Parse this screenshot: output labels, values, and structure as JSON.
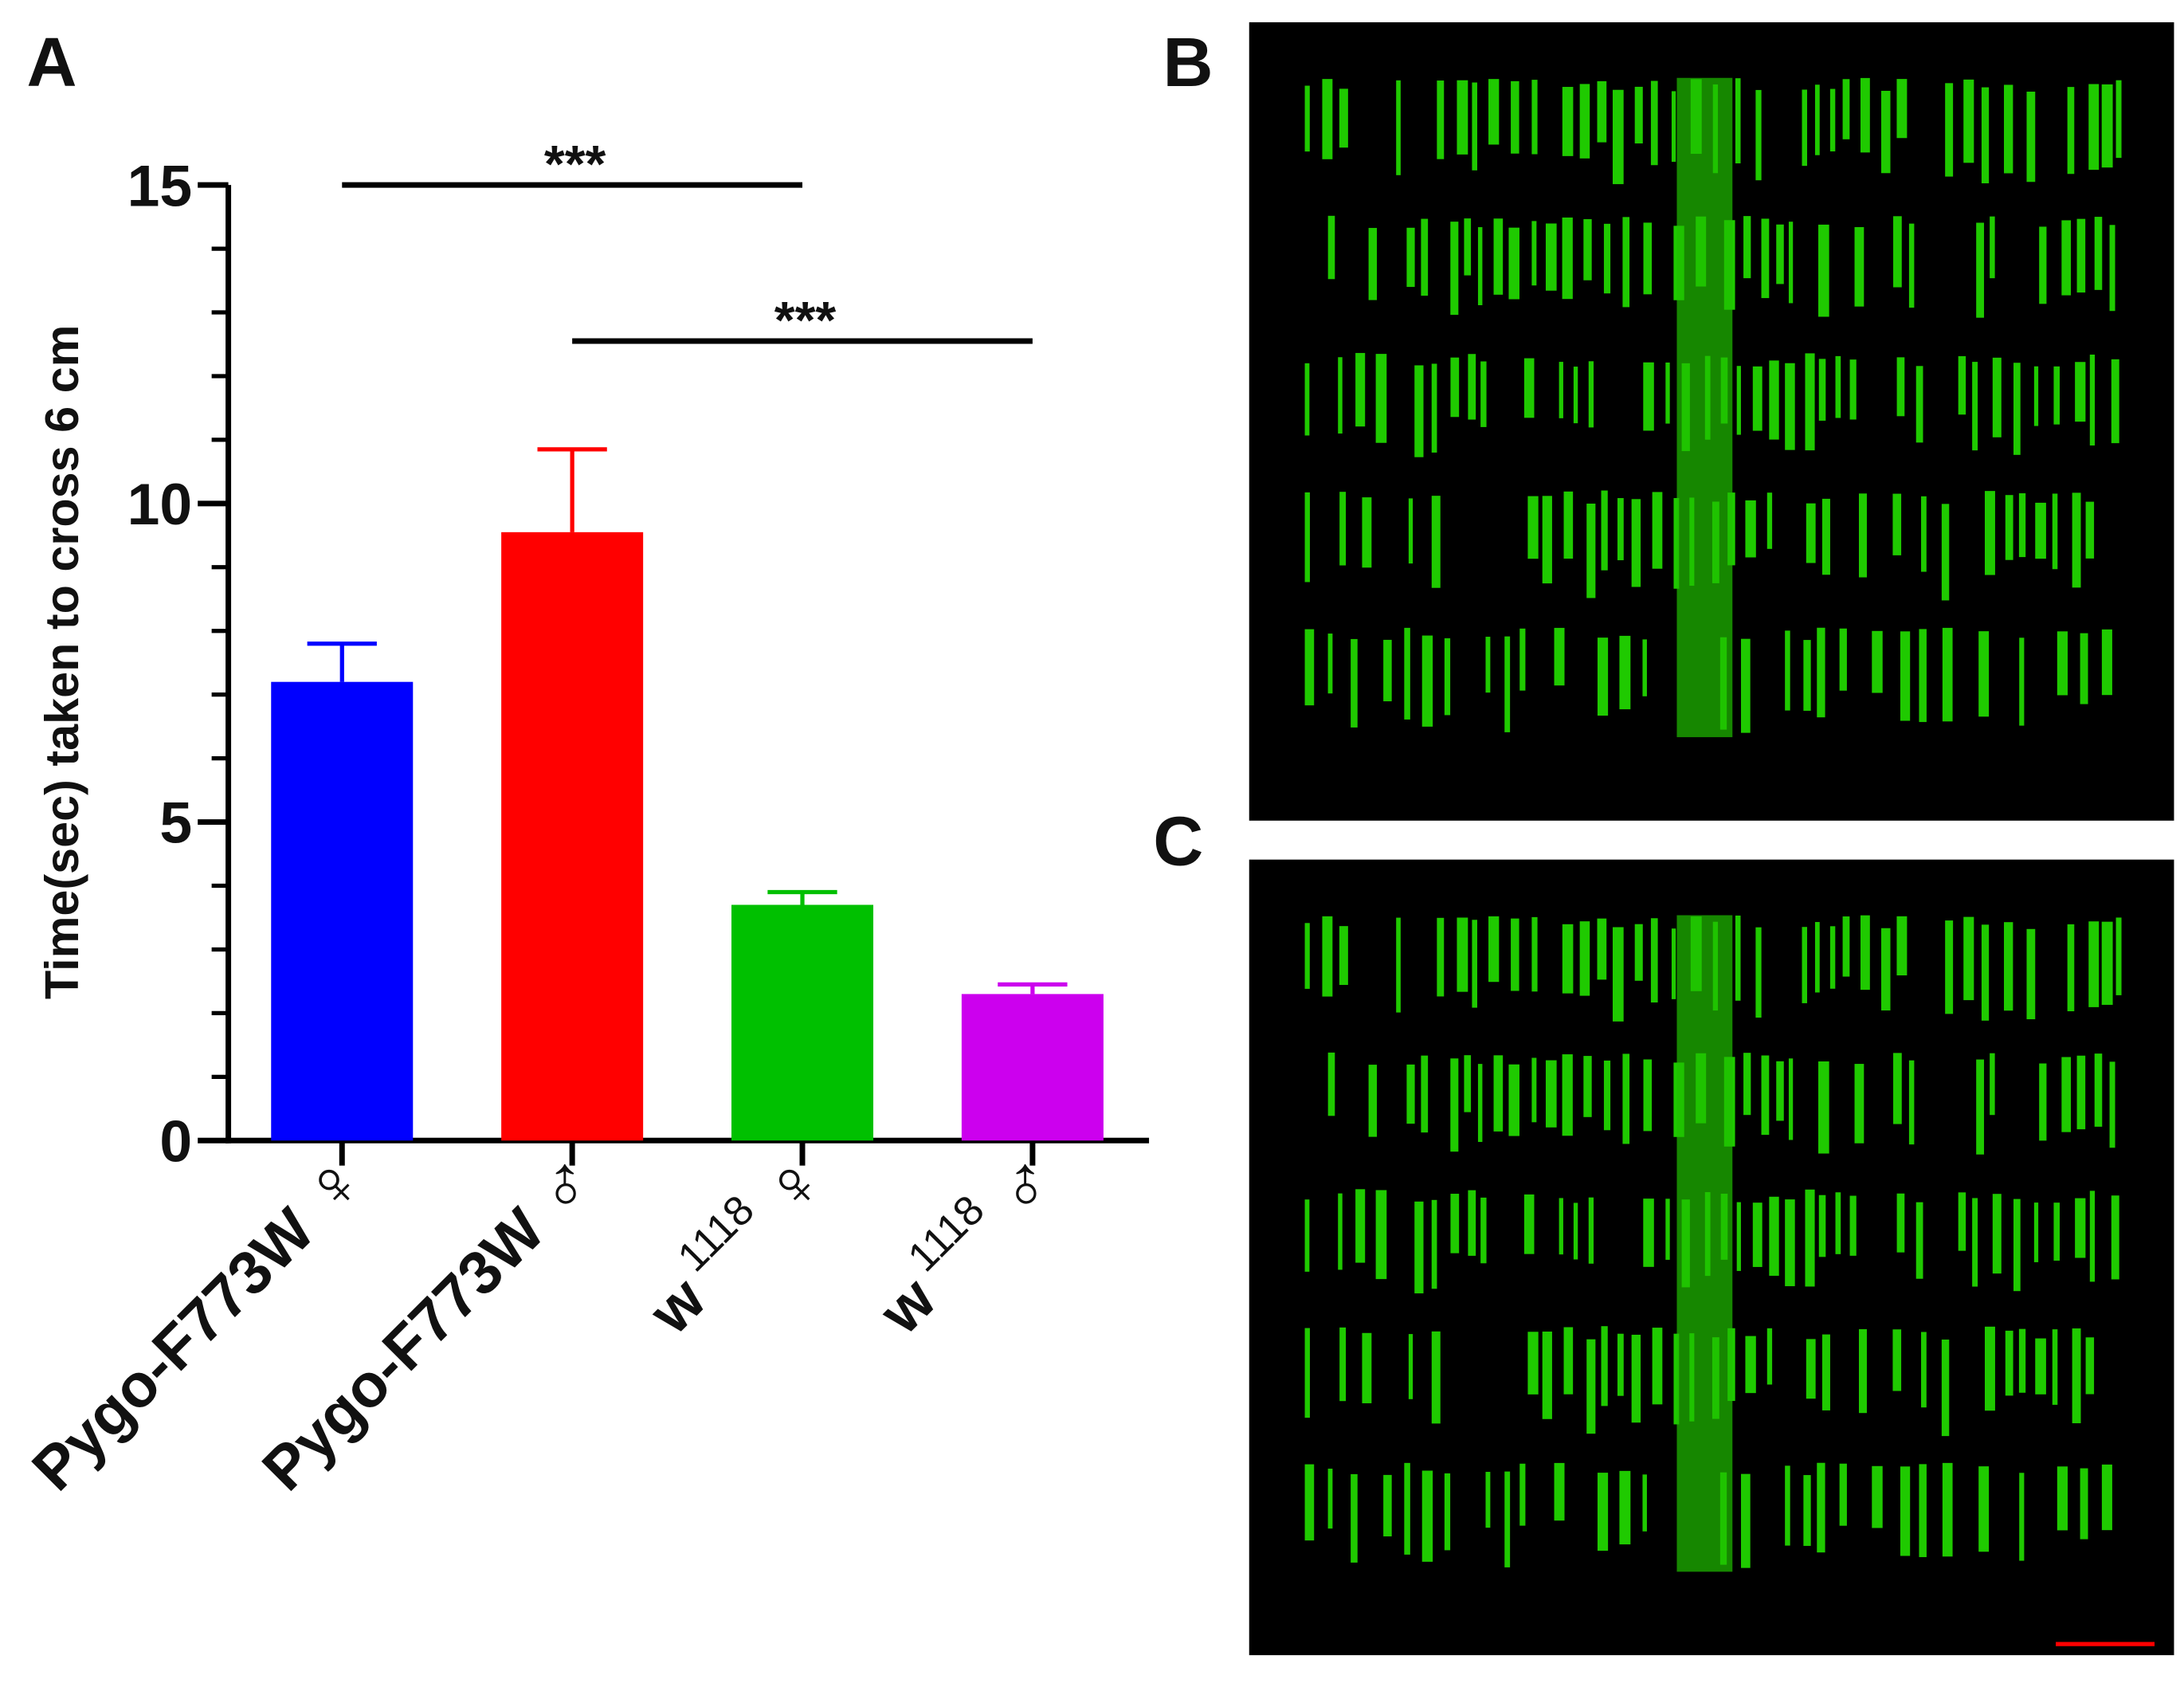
{
  "chart_data": {
    "type": "bar",
    "panel_label": "A",
    "ylabel": "Time(sec) taken to cross 6 cm",
    "categories": [
      {
        "text": "Pygo-F773W",
        "symbol": "♀"
      },
      {
        "text": "Pygo-F773W",
        "symbol": "♂"
      },
      {
        "text": "w",
        "superscript": "1118",
        "symbol": "♀"
      },
      {
        "text": "w",
        "superscript": "1118",
        "symbol": "♂"
      }
    ],
    "values": [
      7.2,
      9.55,
      3.7,
      2.3
    ],
    "errors": [
      0.6,
      1.3,
      0.2,
      0.15
    ],
    "colors": [
      "#0000ff",
      "#ff0000",
      "#00c000",
      "#cc00ee"
    ],
    "ylim": [
      0,
      15
    ],
    "yticks": [
      0,
      5,
      10,
      15
    ],
    "minor_yticks": [
      1,
      2,
      3,
      4,
      6,
      7,
      8,
      9,
      11,
      12,
      13,
      14
    ],
    "annotations": [
      {
        "text": "***",
        "from": 0,
        "to": 2,
        "y": 15
      },
      {
        "text": "***",
        "from": 1,
        "to": 3,
        "y": 12.55
      }
    ]
  },
  "images": [
    {
      "panel_label": "B"
    },
    {
      "panel_label": "C"
    }
  ]
}
